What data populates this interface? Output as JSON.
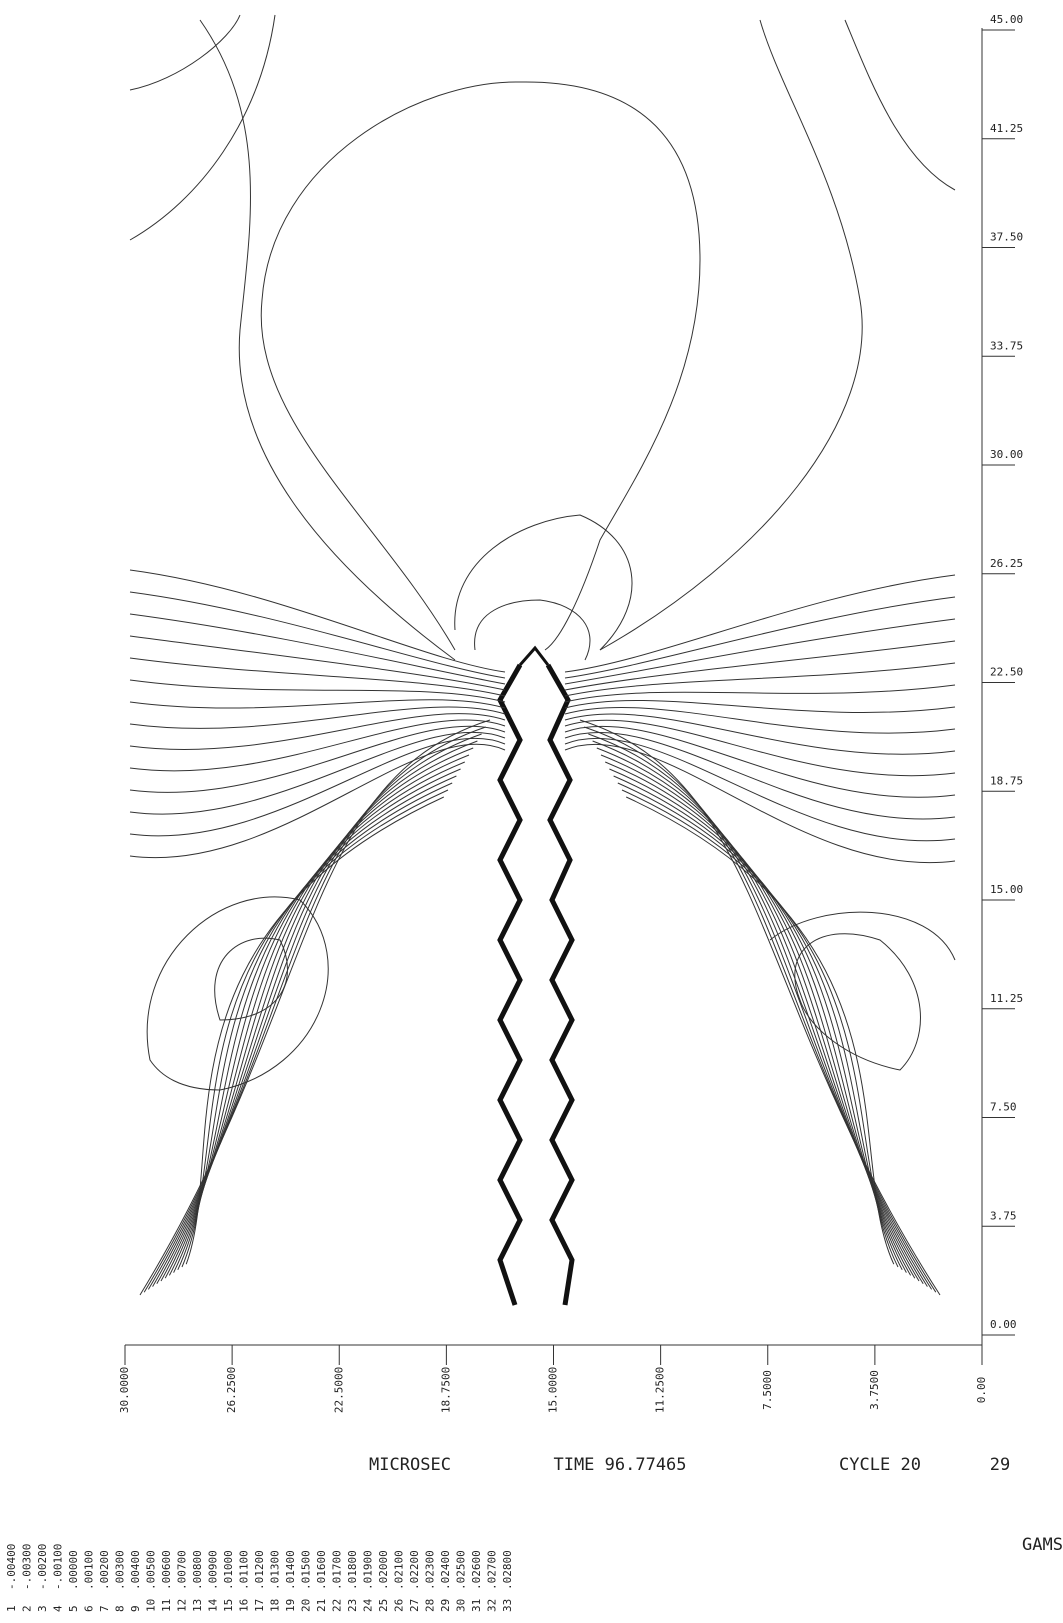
{
  "chart_data": {
    "type": "contour",
    "header": {
      "id": "29",
      "cycle": "CYCLE 20",
      "time": "TIME 96.77465",
      "unit": "MICROSEC",
      "label": "GAMS"
    },
    "xlim": [
      30,
      0
    ],
    "xticks": [
      {
        "value": 30,
        "label": "30.0000"
      },
      {
        "value": 26.25,
        "label": "26.2500"
      },
      {
        "value": 22.5,
        "label": "22.5000"
      },
      {
        "value": 18.75,
        "label": "18.7500"
      },
      {
        "value": 15,
        "label": "15.0000"
      },
      {
        "value": 11.25,
        "label": "11.2500"
      },
      {
        "value": 7.5,
        "label": "7.5000"
      },
      {
        "value": 3.75,
        "label": "3.7500"
      },
      {
        "value": 0,
        "label": "0.00"
      }
    ],
    "ylim": [
      0,
      45
    ],
    "yticks": [
      {
        "value": 0,
        "label": "0.00"
      },
      3.75,
      {
        "value": 7.5,
        "label": "7.50"
      },
      {
        "value": 11.25,
        "label": "11.25"
      },
      {
        "value": 15,
        "label": "15.00"
      },
      {
        "value": 18.75,
        "label": "18.75"
      },
      {
        "value": 22.5,
        "label": "22.50"
      },
      {
        "value": 26.25,
        "label": "26.25"
      },
      {
        "value": 30,
        "label": "30.00"
      },
      {
        "value": 33.75,
        "label": "33.75"
      },
      {
        "value": 37.5,
        "label": "37.50"
      },
      {
        "value": 41.25,
        "label": "41.25"
      },
      {
        "value": 45,
        "label": "45.00"
      }
    ],
    "level_numbers": [
      1,
      2,
      3,
      4,
      5,
      6,
      7,
      8,
      9,
      10,
      11,
      12,
      13,
      14,
      15,
      16,
      17,
      18,
      19,
      20,
      21,
      22,
      23,
      24,
      25,
      26,
      27,
      28,
      29,
      30,
      31,
      32,
      33
    ],
    "contour_levels": [
      {
        "value": -0.004,
        "label": "-.00400"
      },
      {
        "value": -0.003,
        "label": "-.00300"
      },
      {
        "value": -0.002,
        "label": "-.00200"
      },
      {
        "value": -0.001,
        "label": "-.00100"
      },
      {
        "value": 0,
        "label": ".00000"
      },
      {
        "value": 0.001,
        "label": ".00100"
      },
      {
        "value": 0.002,
        "label": ".00200"
      },
      {
        "value": 0.003,
        "label": ".00300"
      },
      {
        "value": 0.004,
        "label": ".00400"
      },
      {
        "value": 0.005,
        "label": ".00500"
      },
      {
        "value": 0.006,
        "label": ".00600"
      },
      {
        "value": 0.007,
        "label": ".00700"
      },
      {
        "value": 0.008,
        "label": ".00800"
      },
      {
        "value": 0.009,
        "label": ".00900"
      },
      {
        "value": 0.01,
        "label": ".01000"
      },
      {
        "value": 0.011,
        "label": ".01100"
      },
      {
        "value": 0.012,
        "label": ".01200"
      },
      {
        "value": 0.013,
        "label": ".01300"
      },
      {
        "value": 0.014,
        "label": ".01400"
      },
      {
        "value": 0.015,
        "label": ".01500"
      },
      {
        "value": 0.016,
        "label": ".01600"
      },
      {
        "value": 0.017,
        "label": ".01700"
      },
      {
        "value": 0.018,
        "label": ".01800"
      },
      {
        "value": 0.019,
        "label": ".01900"
      },
      {
        "value": 0.02,
        "label": ".02000"
      },
      {
        "value": 0.021,
        "label": ".02100"
      },
      {
        "value": 0.022,
        "label": ".02200"
      },
      {
        "value": 0.023,
        "label": ".02300"
      },
      {
        "value": 0.024,
        "label": ".02400"
      },
      {
        "value": 0.025,
        "label": ".02500"
      },
      {
        "value": 0.026,
        "label": ".02600"
      },
      {
        "value": 0.027,
        "label": ".02700"
      },
      {
        "value": 0.028,
        "label": ".02800"
      }
    ]
  }
}
